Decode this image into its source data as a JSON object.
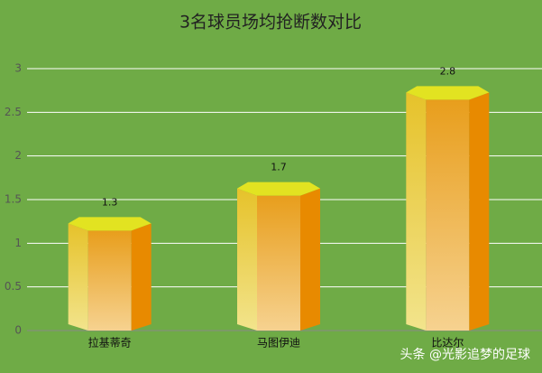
{
  "chart_data": {
    "type": "bar",
    "title": "3名球员场均抢断数对比",
    "categories": [
      "拉基蒂奇",
      "马图伊迪",
      "比达尔"
    ],
    "values": [
      1.3,
      1.7,
      2.8
    ],
    "ylim": [
      0,
      3
    ],
    "yticks": [
      0,
      0.5,
      1,
      1.5,
      2,
      2.5,
      3
    ],
    "grid": true,
    "watermark": "头条 @光影追梦的足球"
  }
}
